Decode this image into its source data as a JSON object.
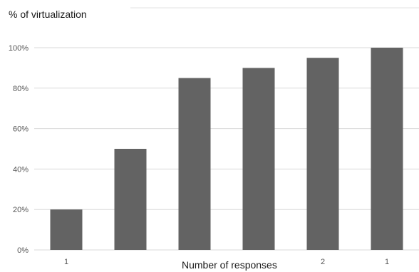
{
  "chart_data": {
    "type": "bar",
    "ylabel": "% of virtualization",
    "xlabel": "Number of responses",
    "categories": [
      "1",
      "",
      "",
      "",
      "2",
      "1"
    ],
    "values": [
      20,
      50,
      85,
      90,
      95,
      100
    ],
    "ylim": [
      0,
      100
    ],
    "yticks": [
      "0%",
      "20%",
      "40%",
      "60%",
      "80%",
      "100%"
    ],
    "grid": true,
    "bar_color": "#636363",
    "grid_color": "#d9d9d9"
  }
}
